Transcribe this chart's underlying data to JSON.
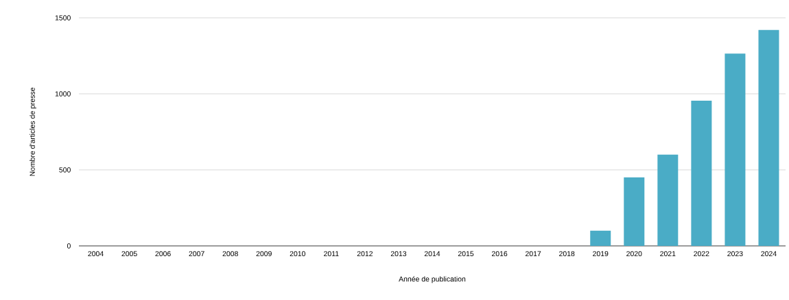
{
  "chart_data": {
    "type": "bar",
    "xlabel": "Année de publication",
    "ylabel": "Nombre d'articles de presse",
    "categories": [
      "2004",
      "2005",
      "2006",
      "2007",
      "2008",
      "2009",
      "2010",
      "2011",
      "2012",
      "2013",
      "2014",
      "2015",
      "2016",
      "2017",
      "2018",
      "2019",
      "2020",
      "2021",
      "2022",
      "2023",
      "2024"
    ],
    "values": [
      0,
      0,
      0,
      0,
      0,
      0,
      0,
      0,
      0,
      0,
      0,
      0,
      0,
      0,
      0,
      100,
      450,
      600,
      955,
      1265,
      1420
    ],
    "color": "#4aacc6",
    "ylim": [
      0,
      1500
    ],
    "yticks": [
      0,
      500,
      1000,
      1500
    ],
    "grid": "y"
  }
}
